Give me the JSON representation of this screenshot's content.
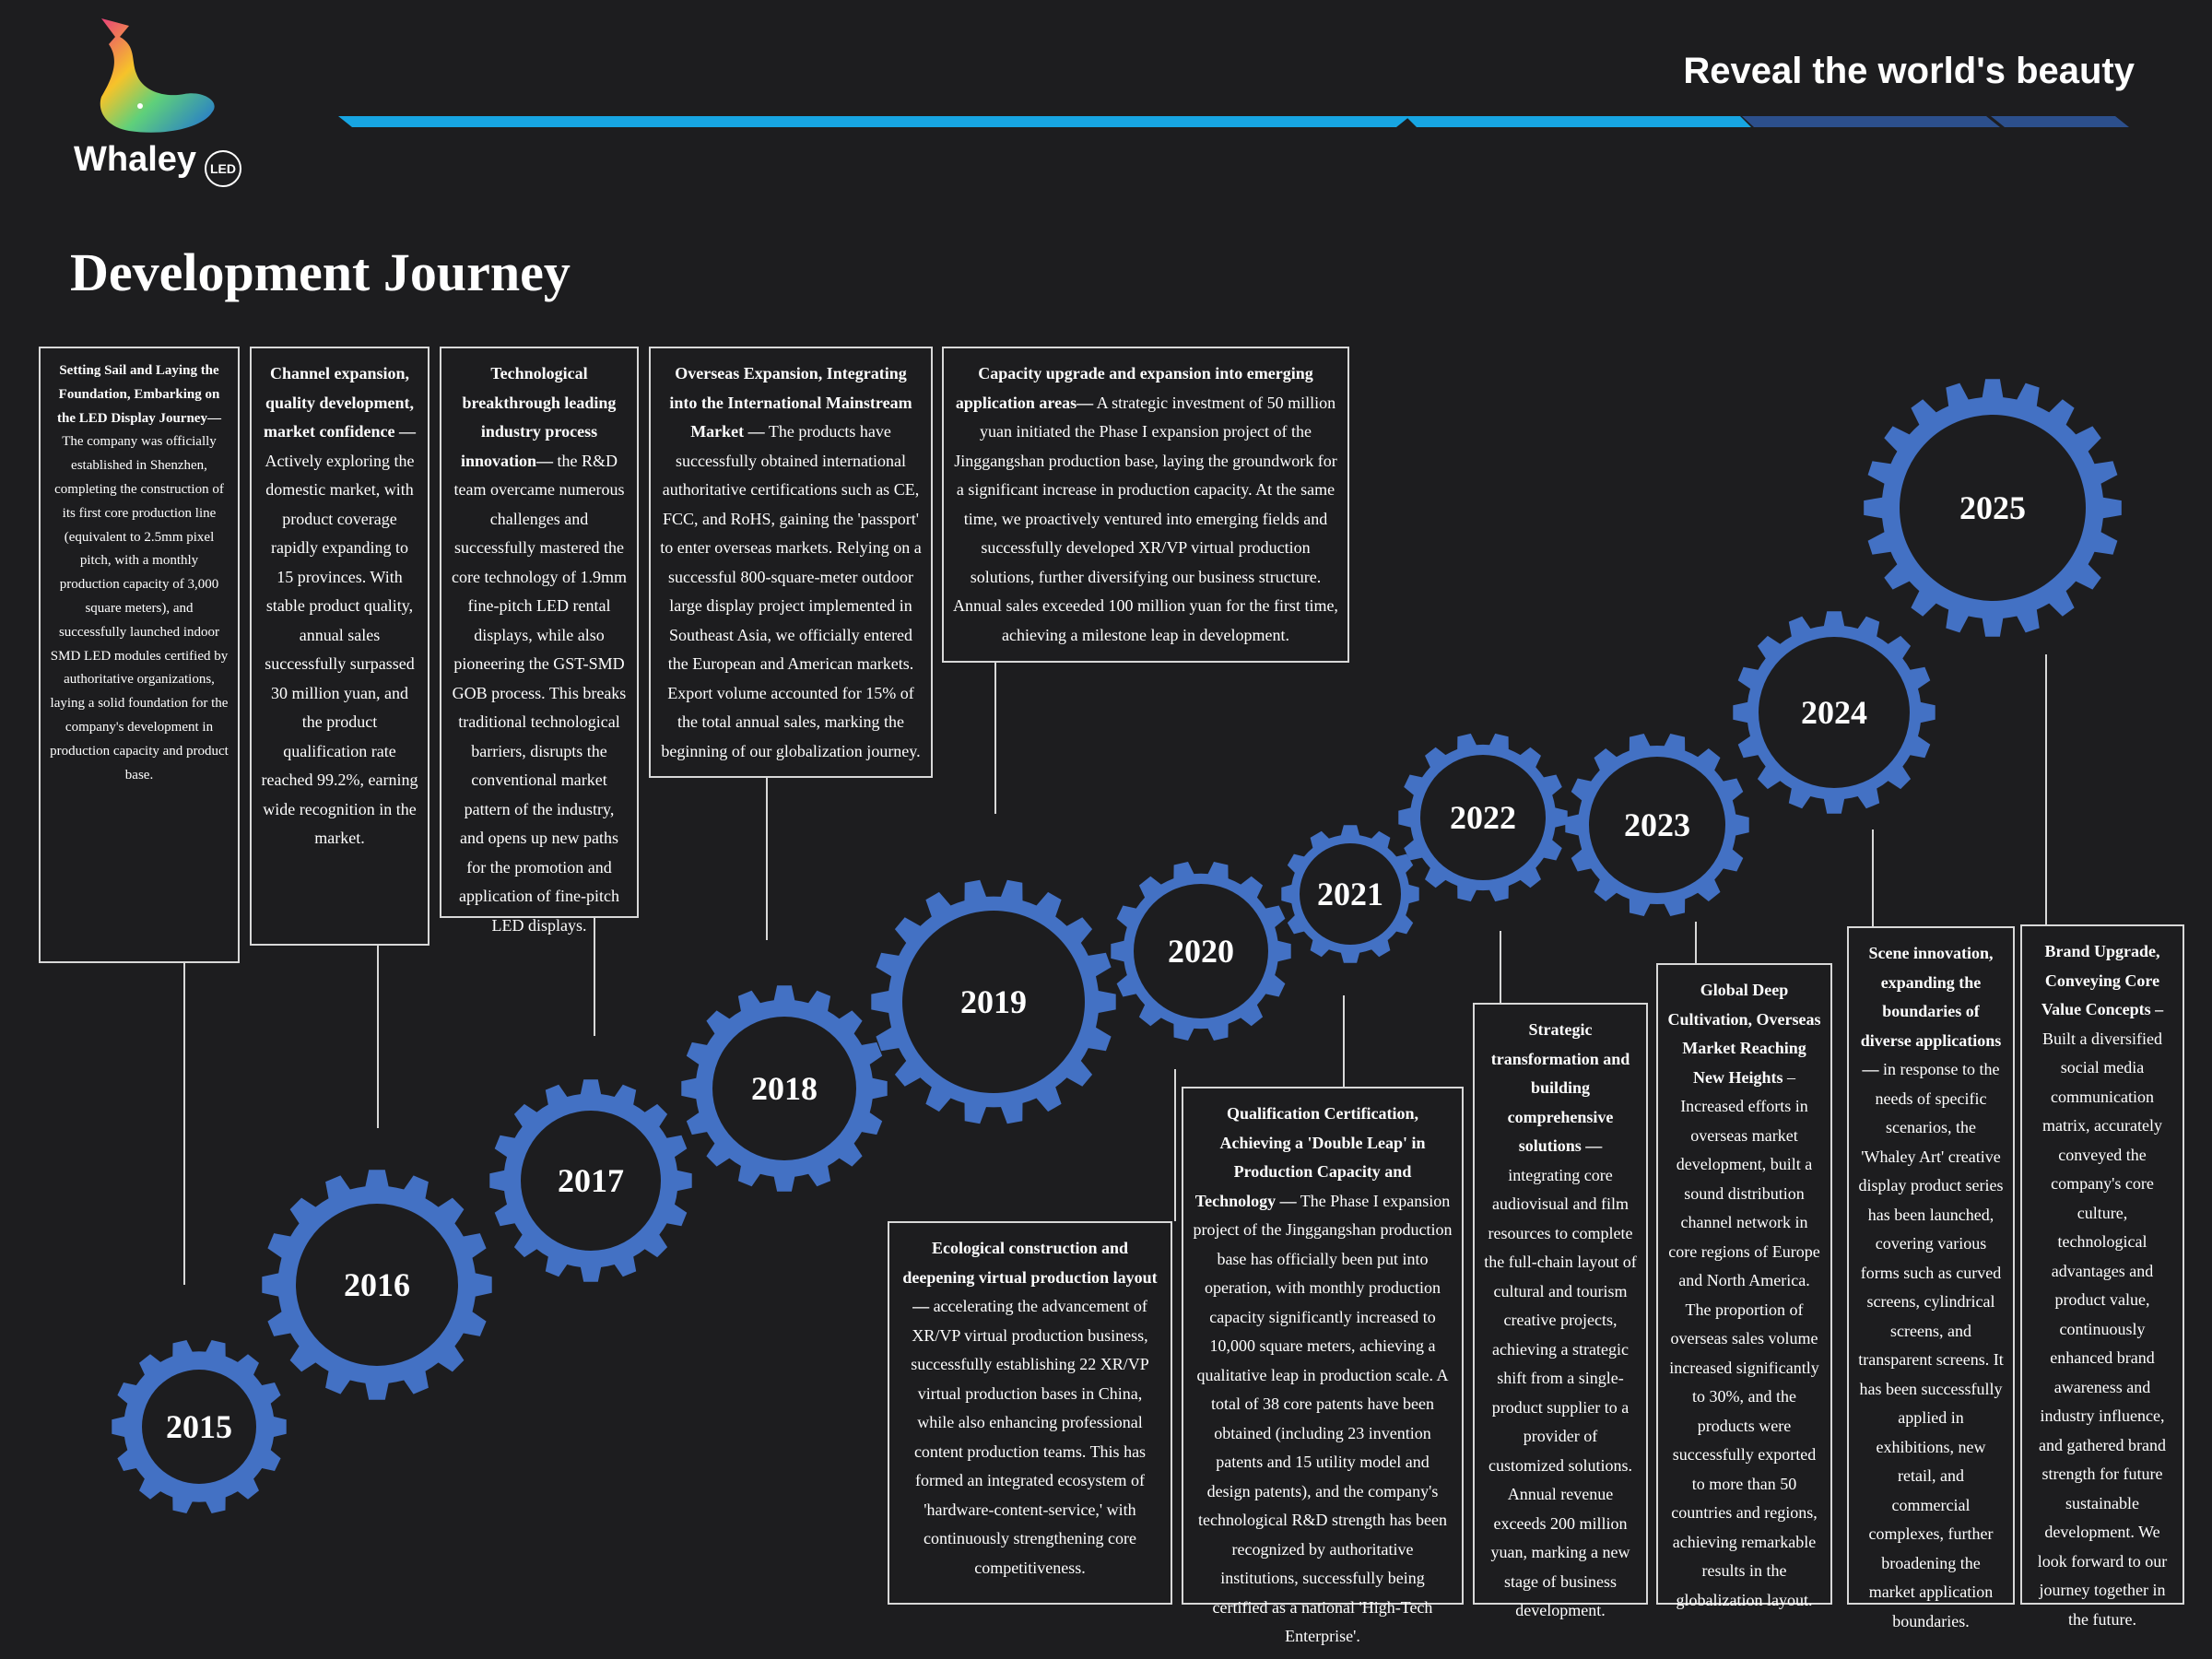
{
  "brand": {
    "name": "Whaley",
    "badge": "LED",
    "logo_icon": "whale-logo-icon"
  },
  "header": {
    "tagline": "Reveal the world's beauty",
    "bar_colors": [
      "#17a5e2",
      "#2c4f8c"
    ]
  },
  "page_title": "Development Journey",
  "gear_color": "#4371c4",
  "milestones": [
    {
      "year": "2015",
      "title": "Setting Sail and Laying the Foundation, Embarking on the LED Display Journey—",
      "text": "The company was officially established in Shenzhen, completing the construction of its first core production line (equivalent to 2.5mm pixel pitch, with a monthly production capacity of 3,000 square meters), and successfully launched indoor SMD LED modules certified by authoritative organizations, laying a solid foundation for the company's development in production capacity and product base."
    },
    {
      "year": "2016",
      "title": "Channel expansion, quality development, market confidence —",
      "text": "Actively exploring the domestic market, with product coverage rapidly expanding to 15 provinces. With stable product quality, annual sales successfully surpassed 30 million yuan, and the product qualification rate reached 99.2%, earning wide recognition in the market."
    },
    {
      "year": "2017",
      "title": "Technological breakthrough leading industry process innovation—",
      "text": "the R&D team overcame numerous challenges and successfully mastered the core technology of 1.9mm fine-pitch LED rental displays, while also pioneering the GST-SMD GOB process. This breaks traditional technological barriers, disrupts the conventional market pattern of the industry, and opens up new paths for the promotion and application of fine-pitch LED displays."
    },
    {
      "year": "2018",
      "title": "Overseas Expansion, Integrating into the International Mainstream Market —",
      "text": "The products have successfully obtained international authoritative certifications such as CE, FCC, and RoHS, gaining the 'passport' to enter overseas markets. Relying on a successful 800-square-meter outdoor large display project implemented in Southeast Asia, we officially entered the European and American markets. Export volume accounted for 15% of the total annual sales, marking the beginning of our globalization journey."
    },
    {
      "year": "2019",
      "title": "Capacity upgrade and expansion into emerging application areas—",
      "text": "A strategic investment of 50 million yuan initiated the Phase I expansion project of the Jinggangshan production base, laying the groundwork for a significant increase in production capacity. At the same time, we proactively ventured into emerging fields and successfully developed XR/VP virtual production solutions, further diversifying our business structure. Annual sales exceeded 100 million yuan for the first time, achieving a milestone leap in development."
    },
    {
      "year": "2020",
      "title": "Ecological construction and deepening virtual production layout —",
      "text": "accelerating the advancement of XR/VP virtual production business, successfully establishing 22 XR/VP virtual production bases in China, while also enhancing professional content production teams. This has formed an integrated ecosystem of 'hardware-content-service,' with continuously strengthening core competitiveness."
    },
    {
      "year": "2021",
      "title": "Qualification Certification, Achieving a 'Double Leap' in Production Capacity and Technology —",
      "text": "The Phase I expansion project of the Jinggangshan production base has officially been put into operation, with monthly production capacity significantly increased to 10,000 square meters, achieving a qualitative leap in production scale. A total of 38 core patents have been obtained (including 23 invention patents and 15 utility model and design patents), and the company's technological R&D strength has been recognized by authoritative institutions, successfully being certified as a national 'High-Tech Enterprise'."
    },
    {
      "year": "2022",
      "title": "Strategic transformation and building comprehensive solutions —",
      "text": "integrating core audiovisual and film resources to complete the full-chain layout of cultural and tourism creative projects, achieving a strategic shift from a single-product supplier to a provider of customized solutions. Annual revenue exceeds 200 million yuan, marking a new stage of business development."
    },
    {
      "year": "2023",
      "title": "Global Deep Cultivation, Overseas Market Reaching New Heights",
      "text": "– Increased efforts in overseas market development, built a sound distribution channel network in core regions of Europe and North America. The proportion of overseas sales volume increased significantly to 30%, and the products were successfully exported to more than 50 countries and regions, achieving remarkable results in the globalization layout."
    },
    {
      "year": "2024",
      "title": "Scene innovation, expanding the boundaries of diverse applications —",
      "text": "in response to the needs of specific scenarios, the 'Whaley Art' creative display product series has been launched, covering various forms such as curved screens, cylindrical screens, and transparent screens. It has been successfully applied in exhibitions, new retail, and commercial complexes, further broadening the market application boundaries."
    },
    {
      "year": "2025",
      "title": "Brand Upgrade, Conveying Core Value Concepts –",
      "text": "Built a diversified social media communication matrix, accurately conveyed the company's core culture, technological advantages and product value, continuously enhanced brand awareness and industry influence, and gathered brand strength for future sustainable development. We look forward to our journey together in the future."
    }
  ]
}
